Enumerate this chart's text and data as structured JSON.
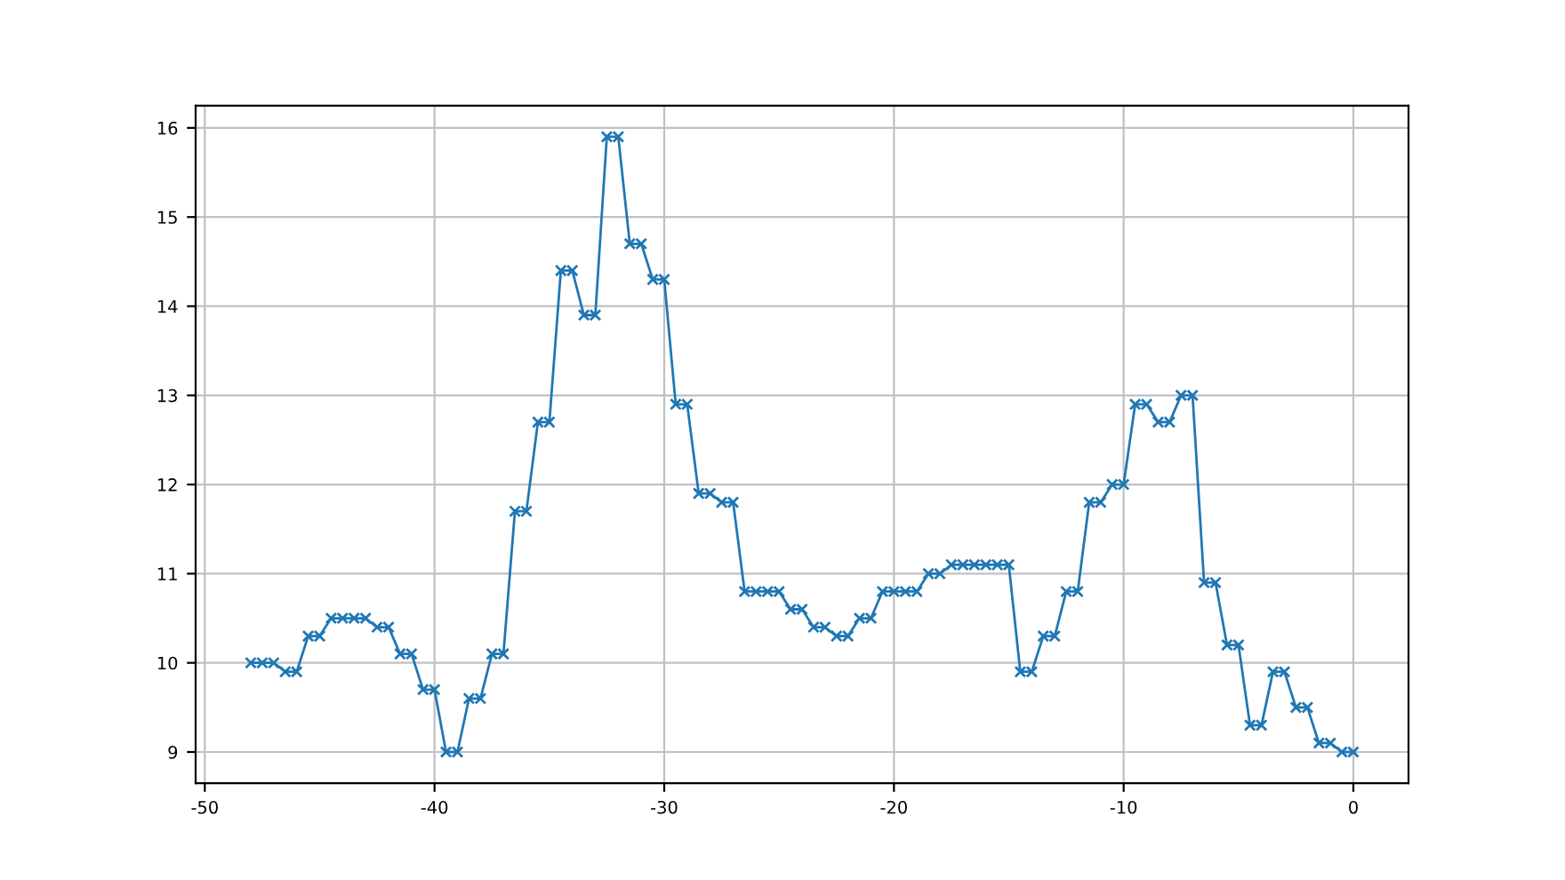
{
  "chart_data": {
    "type": "line",
    "marker": "cross",
    "grid": true,
    "x": [
      -48,
      -47.5,
      -47,
      -46.5,
      -46,
      -45.5,
      -45,
      -44.5,
      -44,
      -43.5,
      -43,
      -42.5,
      -42,
      -41.5,
      -41,
      -40.5,
      -40,
      -39.5,
      -39,
      -38.5,
      -38,
      -37.5,
      -37,
      -36.5,
      -36,
      -35.5,
      -35,
      -34.5,
      -34,
      -33.5,
      -33,
      -32.5,
      -32,
      -31.5,
      -31,
      -30.5,
      -30,
      -29.5,
      -29,
      -28.5,
      -28,
      -27.5,
      -27,
      -26.5,
      -26,
      -25.5,
      -25,
      -24.5,
      -24,
      -23.5,
      -23,
      -22.5,
      -22,
      -21.5,
      -21,
      -20.5,
      -20,
      -19.5,
      -19,
      -18.5,
      -18,
      -17.5,
      -17,
      -16.5,
      -16,
      -15.5,
      -15,
      -14.5,
      -14,
      -13.5,
      -13,
      -12.5,
      -12,
      -11.5,
      -11,
      -10.5,
      -10,
      -9.5,
      -9,
      -8.5,
      -8,
      -7.5,
      -7,
      -6.5,
      -6,
      -5.5,
      -5,
      -4.5,
      -4,
      -3.5,
      -3,
      -2.5,
      -2,
      -1.5,
      -1,
      -0.5,
      0
    ],
    "series": [
      {
        "color": "#1f77b4",
        "values": [
          10.0,
          10.0,
          10.0,
          9.9,
          9.9,
          10.3,
          10.3,
          10.5,
          10.5,
          10.5,
          10.5,
          10.4,
          10.4,
          10.1,
          10.1,
          9.7,
          9.7,
          9.0,
          9.0,
          9.6,
          9.6,
          10.1,
          10.1,
          11.7,
          11.7,
          12.7,
          12.7,
          14.4,
          14.4,
          13.9,
          13.9,
          15.9,
          15.9,
          14.7,
          14.7,
          14.3,
          14.3,
          12.9,
          12.9,
          11.9,
          11.9,
          11.8,
          11.8,
          10.8,
          10.8,
          10.8,
          10.8,
          10.6,
          10.6,
          10.4,
          10.4,
          10.3,
          10.3,
          10.5,
          10.5,
          10.8,
          10.8,
          10.8,
          10.8,
          11.0,
          11.0,
          11.1,
          11.1,
          11.1,
          11.1,
          11.1,
          11.1,
          9.9,
          9.9,
          10.3,
          10.3,
          10.8,
          10.8,
          11.8,
          11.8,
          12.0,
          12.0,
          12.9,
          12.9,
          12.7,
          12.7,
          13.0,
          13.0,
          10.9,
          10.9,
          10.2,
          10.2,
          9.3,
          9.3,
          9.9,
          9.9,
          9.5,
          9.5,
          9.1,
          9.1,
          9.0,
          9.0
        ]
      }
    ],
    "xlim": [
      -50.4,
      2.4
    ],
    "xticks": [
      -50,
      -40,
      -30,
      -20,
      -10,
      0
    ],
    "ylim": [
      8.65,
      16.25
    ],
    "yticks": [
      9,
      10,
      11,
      12,
      13,
      14,
      15,
      16
    ]
  }
}
